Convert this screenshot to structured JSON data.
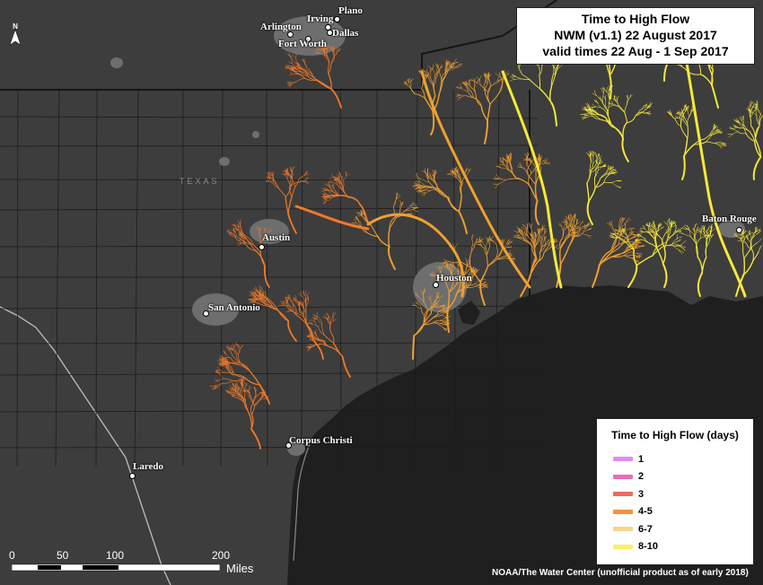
{
  "title": {
    "line1": "Time to High Flow",
    "line2": "NWM (v1.1) 22 August 2017",
    "line3": "valid times 22 Aug - 1 Sep 2017"
  },
  "legend": {
    "title": "Time to High Flow (days)",
    "items": [
      {
        "label": "1",
        "color": "#e08ef0"
      },
      {
        "label": "2",
        "color": "#f06ab0"
      },
      {
        "label": "3",
        "color": "#f06a58"
      },
      {
        "label": "4-5",
        "color": "#f5923c"
      },
      {
        "label": "6-7",
        "color": "#f6d494"
      },
      {
        "label": "8-10",
        "color": "#f7f06a"
      }
    ]
  },
  "cities": {
    "plano": "Plano",
    "irving": "Irving",
    "arlington": "Arlington",
    "dallas": "Dallas",
    "fort_worth": "Fort Worth",
    "austin": "Austin",
    "san_antonio": "San Antonio",
    "houston": "Houston",
    "baton_rouge": "Baton Rouge",
    "corpus_christi": "Corpus Christi",
    "laredo": "Laredo"
  },
  "state_label": "TEXAS",
  "scale": {
    "ticks": [
      "0",
      "50",
      "100",
      "200"
    ],
    "unit": "Miles"
  },
  "credit": "NOAA/The Water Center (unofficial product as of early 2018)",
  "colors": {
    "land": "#3d3d3d",
    "water": "#1f1f1f",
    "urban": "#6e6e6e",
    "boundary": "#1a1a1a",
    "orange": "#f07a2a",
    "amber": "#f0a030",
    "yellow": "#f7e93a"
  },
  "icons": {
    "north_arrow": "north-arrow-icon"
  }
}
